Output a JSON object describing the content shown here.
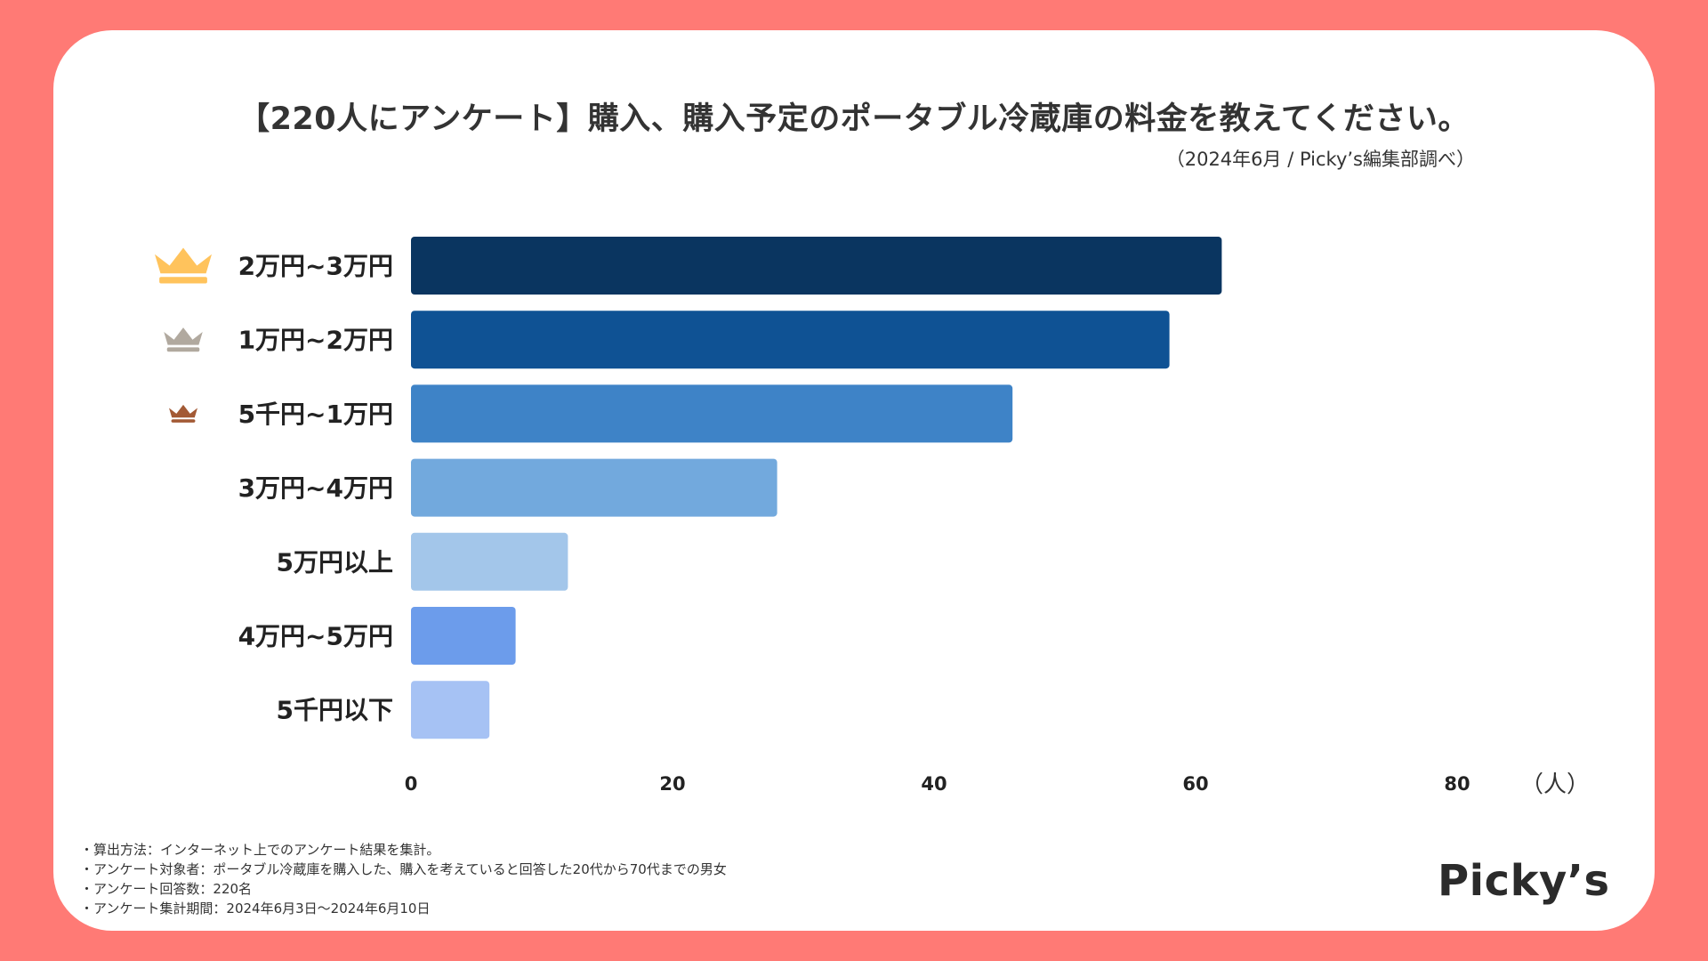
{
  "title": "【220人にアンケート】購入、購入予定のポータブル冷蔵庫の料金を教えてください。",
  "source": "（2024年6月 / Picky’s編集部調べ）",
  "chart_data": {
    "type": "bar",
    "orientation": "horizontal",
    "title": "【220人にアンケート】購入、購入予定のポータブル冷蔵庫の料金を教えてください。",
    "categories": [
      "2万円~3万円",
      "1万円~2万円",
      "5千円~1万円",
      "3万円~4万円",
      "5万円以上",
      "4万円~5万円",
      "5千円以下"
    ],
    "values": [
      62,
      58,
      46,
      28,
      12,
      8,
      6
    ],
    "colors": [
      "#0A3560",
      "#0F5294",
      "#3E83C7",
      "#72A9DD",
      "#A3C6EA",
      "#6C9CEB",
      "#A6C2F4"
    ],
    "rank_crowns": [
      {
        "rank": 1,
        "name": "gold-crown-icon",
        "color": "#FFC35C"
      },
      {
        "rank": 2,
        "name": "silver-crown-icon",
        "color": "#B1A99F"
      },
      {
        "rank": 3,
        "name": "bronze-crown-icon",
        "color": "#A35A35"
      }
    ],
    "xlim": [
      0,
      80
    ],
    "xticks": [
      "0",
      "20",
      "40",
      "60",
      "80"
    ],
    "xlabel": "（人）",
    "grid": false,
    "legend": "none"
  },
  "notes": [
    "・算出方法：インターネット上でのアンケート結果を集計。",
    "・アンケート対象者：ポータブル冷蔵庫を購入した、購入を考えていると回答した20代から70代までの男女",
    "・アンケート回答数：220名",
    "・アンケート集計期間：2024年6月3日〜2024年6月10日"
  ],
  "logo": "Picky’s"
}
